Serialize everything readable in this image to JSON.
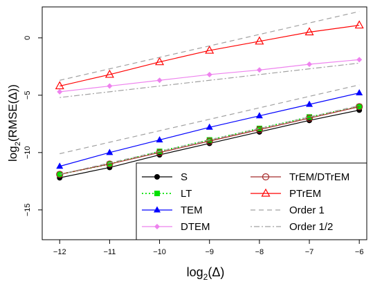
{
  "chart_data": {
    "type": "line",
    "xlabel": {
      "base": "log",
      "sub": "2",
      "arg": "(Δ)"
    },
    "ylabel": {
      "base": "log",
      "sub": "2",
      "arg": "(RMSE(Δ))"
    },
    "xlim": [
      -12.35,
      -5.85
    ],
    "ylim": [
      -17.6,
      2.7
    ],
    "x_ticks": [
      -12,
      -11,
      -10,
      -9,
      -8,
      -7,
      -6
    ],
    "y_ticks": [
      0,
      -5,
      -10,
      -15
    ],
    "x": [
      -12,
      -11,
      -10,
      -9,
      -8,
      -7,
      -6
    ],
    "series": [
      {
        "name": "S",
        "color": "#000000",
        "marker": "circle-filled",
        "dash": "solid",
        "values": [
          -12.2,
          -11.3,
          -10.2,
          -9.2,
          -8.2,
          -7.2,
          -6.3
        ]
      },
      {
        "name": "LT",
        "color": "#00e000",
        "marker": "square-filled",
        "dash": "dotted",
        "values": [
          -11.9,
          -11.0,
          -9.9,
          -8.9,
          -7.9,
          -6.9,
          -6.0
        ]
      },
      {
        "name": "TEM",
        "color": "#0000ff",
        "marker": "triangle-filled",
        "dash": "solid",
        "values": [
          -11.2,
          -10.0,
          -8.9,
          -7.8,
          -6.8,
          -5.8,
          -4.8
        ]
      },
      {
        "name": "DTEM",
        "color": "#ee82ee",
        "marker": "diamond-filled",
        "dash": "solid",
        "values": [
          -4.7,
          -4.2,
          -3.7,
          -3.2,
          -2.8,
          -2.3,
          -1.9
        ]
      },
      {
        "name": "TrEM/DTrEM",
        "color": "#a52a2a",
        "marker": "circle-open",
        "dash": "solid",
        "values": [
          -11.9,
          -11.0,
          -10.0,
          -9.0,
          -8.0,
          -7.0,
          -6.0
        ]
      },
      {
        "name": "PTrEM",
        "color": "#ff0000",
        "marker": "triangle-open",
        "dash": "solid",
        "values": [
          -4.2,
          -3.2,
          -2.1,
          -1.1,
          -0.3,
          0.5,
          1.1
        ]
      },
      {
        "name": "Order 1",
        "color": "#a0a0a0",
        "marker": "none",
        "dash": "dashed",
        "values": [
          -3.7,
          -2.7,
          -1.7,
          -0.7,
          0.3,
          1.3,
          2.3
        ]
      },
      {
        "name": "Order 1/2",
        "color": "#a0a0a0",
        "marker": "none",
        "dash": "dotdash",
        "values": [
          -5.2,
          -4.7,
          -4.2,
          -3.7,
          -3.2,
          -2.7,
          -2.2
        ]
      },
      {
        "name": "",
        "color": "#a0a0a0",
        "marker": "none",
        "dash": "dashed",
        "values": [
          -10.1,
          -9.1,
          -8.1,
          -7.1,
          -6.1,
          -5.1,
          -4.1
        ]
      },
      {
        "name": "",
        "color": "#a0a0a0",
        "marker": "none",
        "dash": "dashed",
        "values": [
          -11.9,
          -10.9,
          -9.9,
          -8.9,
          -7.9,
          -6.9,
          -5.9
        ]
      }
    ],
    "legend": {
      "placement": "bottom-right",
      "columns": [
        [
          "S",
          "LT",
          "TEM",
          "DTEM"
        ],
        [
          "TrEM/DTrEM",
          "PTrEM",
          "Order 1",
          "Order 1/2"
        ]
      ]
    },
    "grid": false
  }
}
